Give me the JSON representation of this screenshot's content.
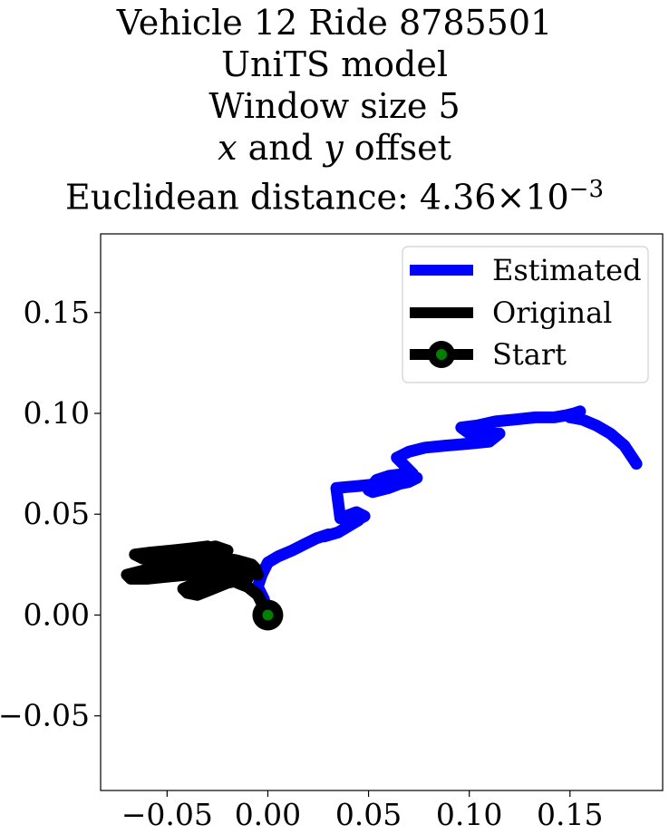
{
  "title": {
    "line1": "Vehicle 12 Ride 8785501",
    "line2": "UniTS model",
    "line3": "Window size 5",
    "line4_x": "x",
    "line4_and": "and",
    "line4_y": "y",
    "line4_rest": "offset",
    "line5_prefix": "Euclidean distance: 4.36",
    "line5_times": "×",
    "line5_base": "10",
    "line5_exp": "−3"
  },
  "chart_data": {
    "type": "line",
    "xlim": [
      -0.083,
      0.196
    ],
    "ylim": [
      -0.087,
      0.189
    ],
    "xticks": [
      -0.05,
      0.0,
      0.05,
      0.1,
      0.15
    ],
    "xtick_labels": [
      "−0.05",
      "0.00",
      "0.05",
      "0.10",
      "0.15"
    ],
    "yticks": [
      -0.05,
      0.0,
      0.05,
      0.1,
      0.15
    ],
    "ytick_labels": [
      "−0.05",
      "0.00",
      "0.05",
      "0.10",
      "0.15"
    ],
    "grid": false,
    "legend_position": "top-right",
    "series": [
      {
        "name": "Estimated",
        "color": "#0000ff",
        "x": [
          0.0,
          -0.002,
          -0.005,
          -0.003,
          0.0,
          0.005,
          0.012,
          0.018,
          0.024,
          0.03,
          0.028,
          0.035,
          0.04,
          0.045,
          0.042,
          0.048,
          0.044,
          0.036,
          0.034,
          0.045,
          0.055,
          0.065,
          0.07,
          0.074,
          0.068,
          0.06,
          0.054,
          0.05,
          0.052,
          0.06,
          0.068,
          0.072,
          0.068,
          0.064,
          0.07,
          0.078,
          0.088,
          0.1,
          0.11,
          0.115,
          0.108,
          0.1,
          0.096,
          0.104,
          0.113,
          0.123,
          0.133,
          0.142,
          0.148,
          0.152,
          0.155,
          0.15,
          0.156,
          0.163,
          0.17,
          0.177,
          0.183
        ],
        "y": [
          0.0,
          0.008,
          0.014,
          0.02,
          0.026,
          0.029,
          0.032,
          0.035,
          0.038,
          0.04,
          0.039,
          0.041,
          0.044,
          0.047,
          0.046,
          0.049,
          0.051,
          0.048,
          0.063,
          0.064,
          0.065,
          0.065,
          0.066,
          0.068,
          0.07,
          0.069,
          0.067,
          0.062,
          0.061,
          0.063,
          0.066,
          0.07,
          0.074,
          0.078,
          0.081,
          0.083,
          0.084,
          0.085,
          0.086,
          0.09,
          0.09,
          0.09,
          0.093,
          0.094,
          0.096,
          0.097,
          0.098,
          0.098,
          0.099,
          0.1,
          0.101,
          0.098,
          0.097,
          0.094,
          0.09,
          0.084,
          0.075
        ]
      },
      {
        "name": "Original",
        "color": "#000000",
        "x": [
          0.0,
          -0.005,
          -0.01,
          -0.015,
          -0.01,
          -0.02,
          -0.03,
          -0.035,
          -0.04,
          -0.042,
          -0.035,
          -0.028,
          -0.02,
          -0.015,
          -0.022,
          -0.03,
          -0.04,
          -0.05,
          -0.06,
          -0.068,
          -0.07,
          -0.062,
          -0.05,
          -0.04,
          -0.032,
          -0.025,
          -0.018,
          -0.012,
          -0.006,
          -0.008,
          -0.015,
          -0.025,
          -0.035,
          -0.045,
          -0.055,
          -0.062,
          -0.066,
          -0.058,
          -0.048,
          -0.038,
          -0.03,
          -0.028,
          -0.03,
          -0.04,
          -0.05,
          -0.058,
          -0.06,
          -0.052,
          -0.042,
          -0.032,
          -0.026,
          -0.02,
          -0.028,
          -0.038,
          -0.048,
          -0.056,
          -0.06,
          -0.05,
          -0.04,
          -0.03,
          -0.022,
          -0.012,
          -0.005
        ],
        "y": [
          0.0,
          0.01,
          0.014,
          0.016,
          0.018,
          0.016,
          0.012,
          0.01,
          0.011,
          0.013,
          0.016,
          0.018,
          0.02,
          0.022,
          0.024,
          0.022,
          0.02,
          0.019,
          0.018,
          0.018,
          0.02,
          0.022,
          0.023,
          0.022,
          0.021,
          0.02,
          0.019,
          0.021,
          0.023,
          0.025,
          0.027,
          0.029,
          0.03,
          0.029,
          0.028,
          0.028,
          0.03,
          0.031,
          0.032,
          0.033,
          0.034,
          0.032,
          0.03,
          0.028,
          0.026,
          0.025,
          0.027,
          0.029,
          0.031,
          0.033,
          0.034,
          0.032,
          0.028,
          0.024,
          0.021,
          0.02,
          0.02,
          0.022,
          0.024,
          0.026,
          0.025,
          0.022,
          0.02
        ]
      },
      {
        "name": "Start",
        "color": "#000000",
        "marker_face": "#008000",
        "x": [
          0.0
        ],
        "y": [
          0.0
        ]
      }
    ]
  }
}
